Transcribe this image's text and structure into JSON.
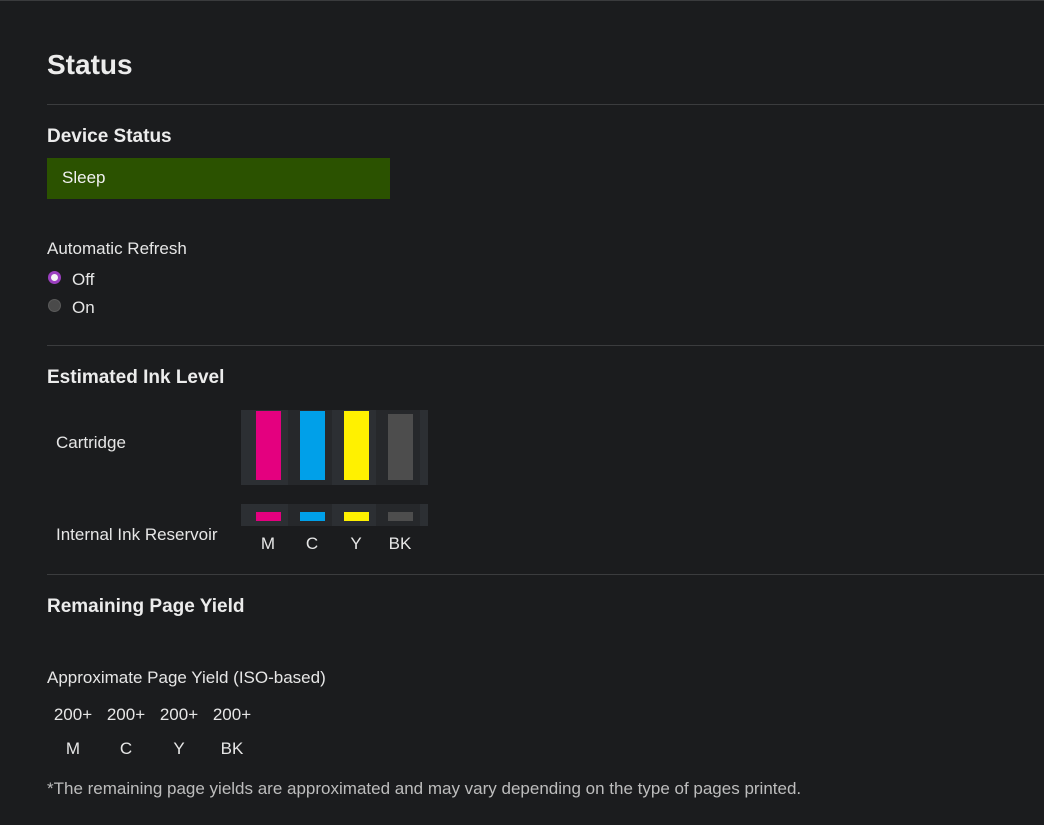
{
  "page_title": "Status",
  "device_status": {
    "heading": "Device Status",
    "value": "Sleep",
    "color": "#2b5200"
  },
  "auto_refresh": {
    "label": "Automatic Refresh",
    "options": [
      {
        "label": "Off",
        "selected": true
      },
      {
        "label": "On",
        "selected": false
      }
    ]
  },
  "ink": {
    "heading": "Estimated Ink Level",
    "cartridge_label": "Cartridge",
    "reservoir_label": "Internal Ink Reservoir",
    "colors": [
      {
        "label": "M",
        "color": "#e4007f",
        "cartridge_level": 100
      },
      {
        "label": "C",
        "color": "#00a0e9",
        "cartridge_level": 100
      },
      {
        "label": "Y",
        "color": "#fff100",
        "cartridge_level": 100
      },
      {
        "label": "BK",
        "color": "#4d4d4d",
        "cartridge_level": 95
      }
    ]
  },
  "yield": {
    "heading": "Remaining Page Yield",
    "subheading": "Approximate Page Yield (ISO-based)",
    "values": [
      "200+",
      "200+",
      "200+",
      "200+"
    ],
    "labels": [
      "M",
      "C",
      "Y",
      "BK"
    ],
    "note": "*The remaining page yields are approximated and may vary depending on the type of pages printed."
  }
}
